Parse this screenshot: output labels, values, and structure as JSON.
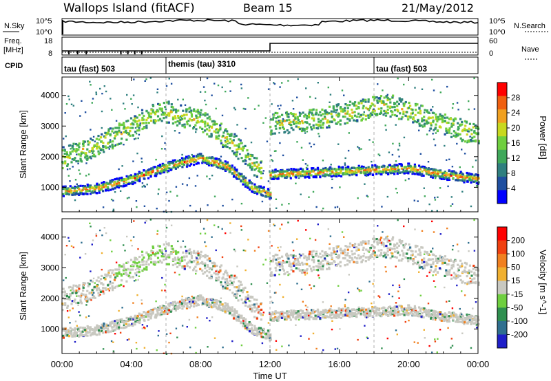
{
  "header": {
    "station": "Wallops Island (fitACF)",
    "beam": "Beam 15",
    "date": "21/May/2012"
  },
  "left_labels": {
    "nsky": "N.Sky",
    "freq_line1": "Freq.",
    "freq_line2": "[MHz]",
    "cpid": "CPID"
  },
  "right_labels": {
    "nsearch": "N.Search",
    "nave": "Nave"
  },
  "noise_axis": {
    "top": "10^5",
    "bottom": "10^0"
  },
  "freq_axis": {
    "left_ticks": [
      "18",
      "8"
    ],
    "right_ticks": [
      "60",
      "0"
    ]
  },
  "cpid_segments": [
    {
      "label": "tau (fast) 503"
    },
    {
      "label": "themis (tau) 3310"
    },
    {
      "label": "tau (fast) 503"
    }
  ],
  "colors": {
    "power_scale": [
      "#0000ff",
      "#1f4fa0",
      "#2f7f7f",
      "#3fa85a",
      "#6fcf3f",
      "#c8d81f",
      "#f0a020",
      "#f06010",
      "#ff0000"
    ],
    "velocity_scale": [
      "#1f1fc8",
      "#2f6f8f",
      "#2f8f4f",
      "#6fcf3f",
      "#c8c8c0",
      "#f0b030",
      "#f08020",
      "#f04010",
      "#ff0000"
    ]
  },
  "chart_data": [
    {
      "type": "heatmap",
      "name": "power",
      "ylabel": "Slant Range [km]",
      "yticks": [
        "1000",
        "2000",
        "3000",
        "4000"
      ],
      "ylim": [
        200,
        4600
      ],
      "xlim": [
        "00:00",
        "24:00"
      ],
      "colorbar": {
        "label": "Power [dB]",
        "ticks": [
          "4",
          "8",
          "12",
          "16",
          "20",
          "24",
          "28"
        ]
      },
      "bands": [
        {
          "x": [
            0,
            2,
            4,
            6,
            8,
            9.5,
            11,
            12
          ],
          "y": [
            900,
            1000,
            1300,
            1700,
            2000,
            1700,
            1000,
            800
          ]
        },
        {
          "x": [
            0,
            2,
            4,
            5,
            6,
            8,
            10,
            11.5
          ],
          "y": [
            2000,
            2400,
            3000,
            3400,
            3500,
            3200,
            2400,
            1500
          ]
        },
        {
          "x": [
            12,
            14,
            16,
            18,
            20,
            22,
            24
          ],
          "y": [
            1450,
            1500,
            1550,
            1600,
            1650,
            1450,
            1300
          ]
        },
        {
          "x": [
            12,
            15,
            18,
            19,
            21,
            23,
            24
          ],
          "y": [
            3100,
            3300,
            3650,
            3700,
            3300,
            2900,
            2700
          ]
        }
      ]
    },
    {
      "type": "heatmap",
      "name": "velocity",
      "ylabel": "Slant Range [km]",
      "xlabel": "Time UT",
      "yticks": [
        "1000",
        "2000",
        "3000",
        "4000"
      ],
      "ylim": [
        200,
        4600
      ],
      "xticks": [
        "00:00",
        "04:00",
        "08:00",
        "12:00",
        "16:00",
        "20:00",
        "00:00"
      ],
      "colorbar": {
        "label": "Velocity [m s^-1]",
        "ticks": [
          "200",
          "100",
          "50",
          "15",
          "-15",
          "-50",
          "-100",
          "-200"
        ]
      }
    }
  ]
}
